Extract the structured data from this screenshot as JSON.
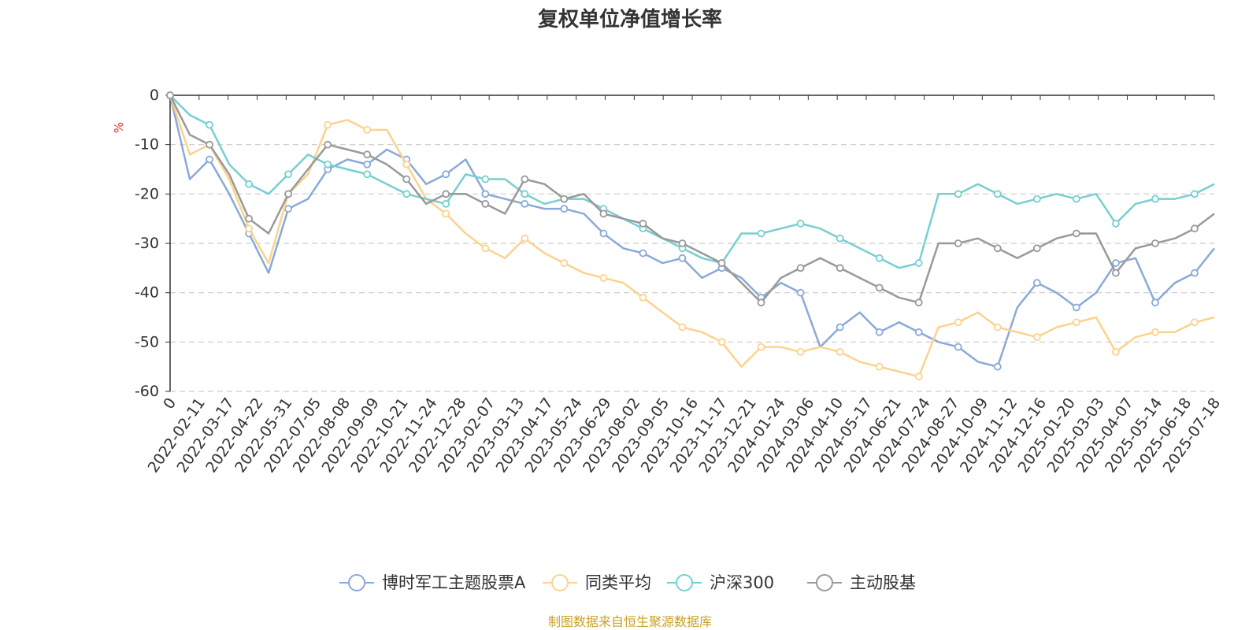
{
  "chart_data": {
    "type": "line",
    "title": "复权单位净值增长率",
    "ylabel": "%",
    "ylim": [
      -60,
      0
    ],
    "yticks": [
      0,
      -10,
      -20,
      -30,
      -40,
      -50,
      -60
    ],
    "ytick_labels": [
      "0",
      "-10",
      "-20",
      "-30",
      "-40",
      "-50",
      "-60"
    ],
    "x_tick_labels": [
      "0",
      "2022-02-11",
      "2022-03-17",
      "2022-04-22",
      "2022-05-31",
      "2022-07-05",
      "2022-08-08",
      "2022-09-09",
      "2022-10-21",
      "2022-11-24",
      "2022-12-28",
      "2023-02-07",
      "2023-03-13",
      "2023-04-17",
      "2023-05-24",
      "2023-06-29",
      "2023-08-02",
      "2023-09-05",
      "2023-10-16",
      "2023-11-17",
      "2023-12-21",
      "2024-01-24",
      "2024-03-06",
      "2024-04-10",
      "2024-05-17",
      "2024-06-21",
      "2024-07-24",
      "2024-08-27",
      "2024-10-09",
      "2024-11-12",
      "2024-12-16",
      "2025-01-20",
      "2025-03-03",
      "2025-04-07",
      "2025-05-14",
      "2025-06-18",
      "2025-07-18"
    ],
    "grid": "horizontal-dashed",
    "legend_position": "bottom",
    "series": [
      {
        "name": "博时军工主题股票A",
        "color": "#8aa9d8",
        "values": [
          0,
          -17,
          -13,
          -20,
          -28,
          -36,
          -23,
          -21,
          -15,
          -13,
          -14,
          -11,
          -13,
          -18,
          -16,
          -13,
          -20,
          -21,
          -22,
          -23,
          -23,
          -24,
          -28,
          -31,
          -32,
          -34,
          -33,
          -37,
          -35,
          -37,
          -41,
          -38,
          -40,
          -51,
          -47,
          -44,
          -48,
          -46,
          -48,
          -50,
          -51,
          -54,
          -55,
          -43,
          -38,
          -40,
          -43,
          -40,
          -34,
          -33,
          -42,
          -38,
          -36,
          -31
        ]
      },
      {
        "name": "同类平均",
        "color": "#fbd38d",
        "values": [
          0,
          -12,
          -10,
          -17,
          -27,
          -34,
          -20,
          -16,
          -6,
          -5,
          -7,
          -7,
          -14,
          -21,
          -24,
          -28,
          -31,
          -33,
          -29,
          -32,
          -34,
          -36,
          -37,
          -38,
          -41,
          -44,
          -47,
          -48,
          -50,
          -55,
          -51,
          -51,
          -52,
          -51,
          -52,
          -54,
          -55,
          -56,
          -57,
          -47,
          -46,
          -44,
          -47,
          -48,
          -49,
          -47,
          -46,
          -45,
          -52,
          -49,
          -48,
          -48,
          -46,
          -45
        ]
      },
      {
        "name": "沪深300",
        "color": "#76cfd1",
        "values": [
          0,
          -4,
          -6,
          -14,
          -18,
          -20,
          -16,
          -12,
          -14,
          -15,
          -16,
          -18,
          -20,
          -21,
          -22,
          -16,
          -17,
          -17,
          -20,
          -22,
          -21,
          -21,
          -23,
          -25,
          -27,
          -29,
          -31,
          -33,
          -34,
          -28,
          -28,
          -27,
          -26,
          -27,
          -29,
          -31,
          -33,
          -35,
          -34,
          -20,
          -20,
          -18,
          -20,
          -22,
          -21,
          -20,
          -21,
          -20,
          -26,
          -22,
          -21,
          -21,
          -20,
          -18
        ]
      },
      {
        "name": "主动股基",
        "color": "#999999",
        "values": [
          0,
          -8,
          -10,
          -16,
          -25,
          -28,
          -20,
          -15,
          -10,
          -11,
          -12,
          -14,
          -17,
          -22,
          -20,
          -20,
          -22,
          -24,
          -17,
          -18,
          -21,
          -20,
          -24,
          -25,
          -26,
          -29,
          -30,
          -32,
          -34,
          -38,
          -42,
          -37,
          -35,
          -33,
          -35,
          -37,
          -39,
          -41,
          -42,
          -30,
          -30,
          -29,
          -31,
          -33,
          -31,
          -29,
          -28,
          -28,
          -36,
          -31,
          -30,
          -29,
          -27,
          -24
        ]
      }
    ]
  },
  "footer": {
    "source_text": "制图数据来自恒生聚源数据库"
  }
}
